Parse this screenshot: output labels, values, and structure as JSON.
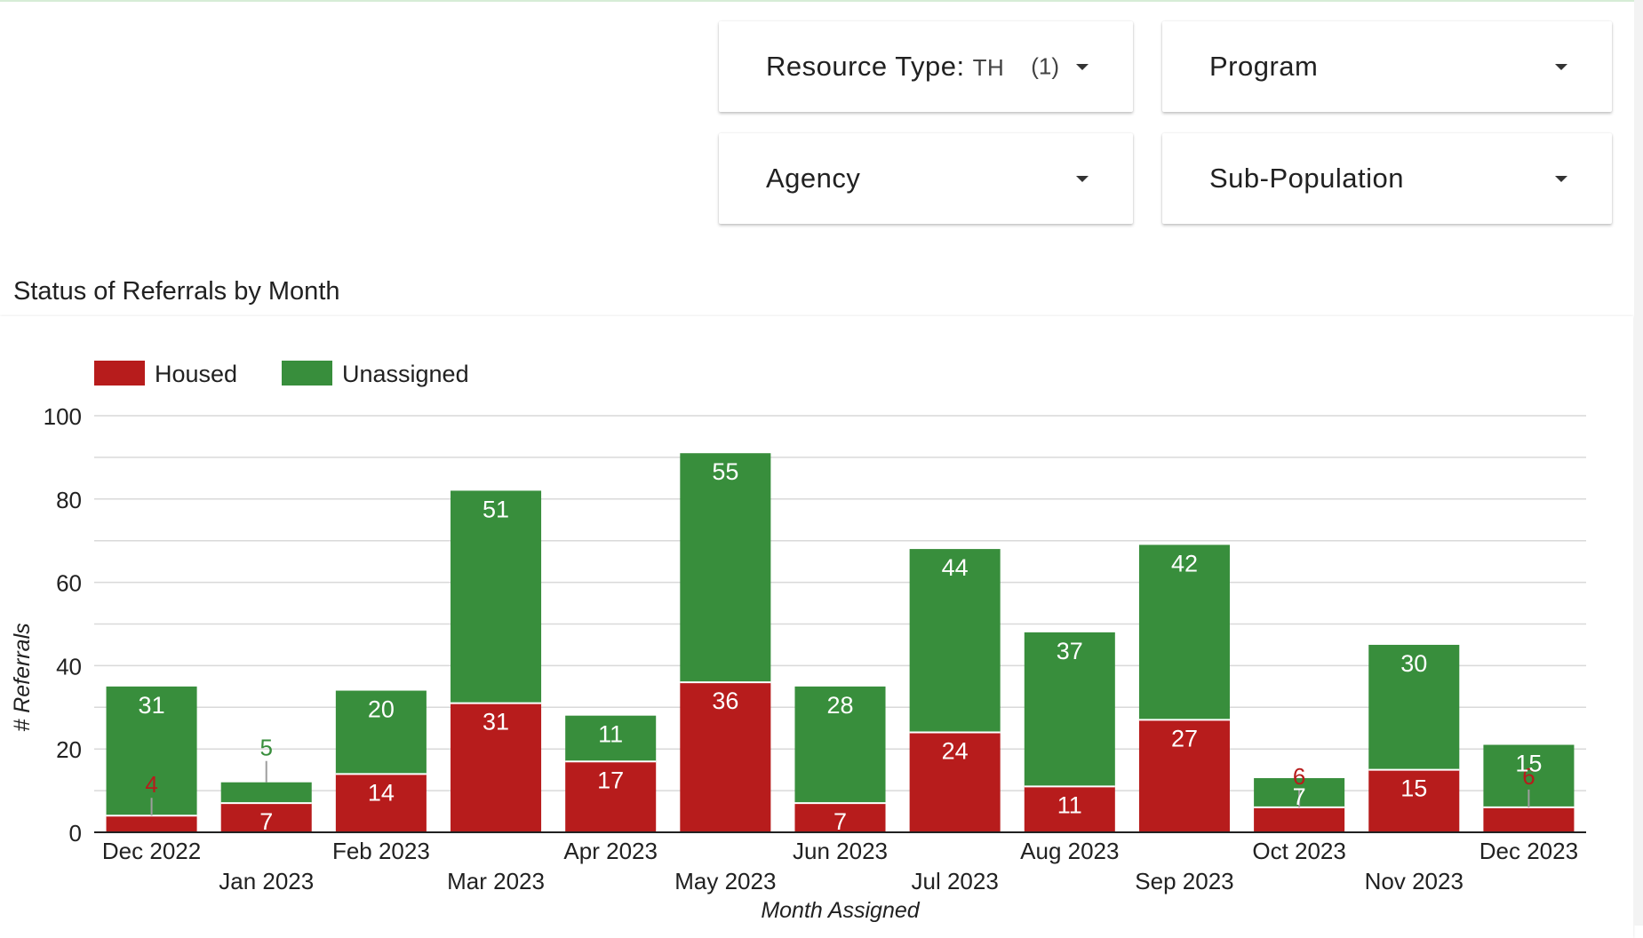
{
  "filters": [
    {
      "label": "Resource Type",
      "value": "TH",
      "count": "(1)"
    },
    {
      "label": "Program",
      "value": "",
      "count": ""
    },
    {
      "label": "Agency",
      "value": "",
      "count": ""
    },
    {
      "label": "Sub-Population",
      "value": "",
      "count": ""
    }
  ],
  "chart_title": "Status of Referrals by Month",
  "chart_data": {
    "type": "bar",
    "stacked": true,
    "categories": [
      "Dec 2022",
      "Jan 2023",
      "Feb 2023",
      "Mar 2023",
      "Apr 2023",
      "May 2023",
      "Jun 2023",
      "Jul 2023",
      "Aug 2023",
      "Sep 2023",
      "Oct 2023",
      "Nov 2023",
      "Dec 2023"
    ],
    "series": [
      {
        "name": "Housed",
        "color": "#b71c1c",
        "values": [
          4,
          7,
          14,
          31,
          17,
          36,
          7,
          24,
          11,
          27,
          6,
          15,
          6
        ]
      },
      {
        "name": "Unassigned",
        "color": "#388e3c",
        "values": [
          31,
          5,
          20,
          51,
          11,
          55,
          28,
          44,
          37,
          42,
          7,
          30,
          15
        ]
      }
    ],
    "xlabel": "Month Assigned",
    "ylabel": "# Referrals",
    "ylim": [
      0,
      100
    ],
    "yticks": [
      0,
      20,
      40,
      60,
      80,
      100
    ],
    "grid": true,
    "legend": "top-left"
  }
}
